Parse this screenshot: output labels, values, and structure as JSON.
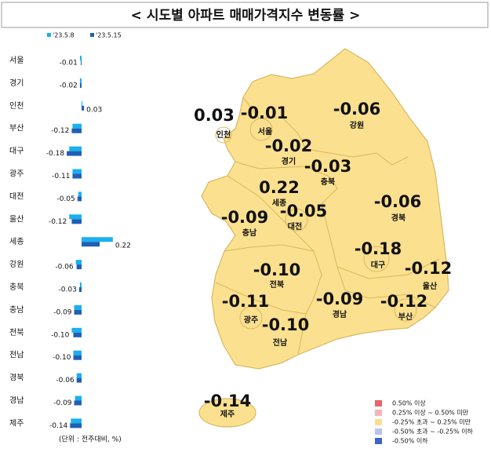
{
  "chart_data": {
    "type": "bar",
    "orientation": "horizontal",
    "title": "< 시도별 아파트 매매가격지수 변동률 >",
    "categories": [
      "서울",
      "경기",
      "인천",
      "부산",
      "대구",
      "광주",
      "대전",
      "울산",
      "세종",
      "강원",
      "충북",
      "충남",
      "전북",
      "전남",
      "경북",
      "경남",
      "제주"
    ],
    "series": [
      {
        "name": "'23.5.8",
        "color": "#1ab0f0",
        "values": [
          -0.02,
          -0.02,
          0.01,
          -0.11,
          -0.15,
          -0.11,
          -0.04,
          -0.15,
          0.38,
          -0.07,
          -0.02,
          -0.09,
          -0.12,
          -0.1,
          -0.06,
          -0.08,
          -0.13
        ]
      },
      {
        "name": "'23.5.15",
        "color": "#1f5fb5",
        "values": [
          -0.01,
          -0.02,
          0.03,
          -0.12,
          -0.18,
          -0.11,
          -0.05,
          -0.12,
          0.22,
          -0.06,
          -0.03,
          -0.09,
          -0.1,
          -0.1,
          -0.06,
          -0.09,
          -0.14
        ],
        "value_labels": [
          "-0.01",
          "-0.02",
          "0.03",
          "-0.12",
          "-0.18",
          "-0.11",
          "-0.05",
          "-0.12",
          "0.22",
          "-0.06",
          "-0.03",
          "-0.09",
          "-0.10",
          "-0.10",
          "-0.06",
          "-0.09",
          "-0.14"
        ]
      }
    ],
    "unit_note": "(단위 : 전주대비, %)",
    "map_fill": "#fbe08f",
    "map_legend": [
      {
        "label": "0.50% 이상",
        "color": "#e8636b"
      },
      {
        "label": "0.25% 이상 ~ 0.50% 미만",
        "color": "#f5b5b8"
      },
      {
        "label": "-0.25% 초과 ~ 0.25% 미만",
        "color": "#fbe08f"
      },
      {
        "label": "-0.50% 초과 ~ -0.25% 이하",
        "color": "#b4c4ea"
      },
      {
        "label": "-0.50% 이하",
        "color": "#3f63c8"
      }
    ]
  }
}
